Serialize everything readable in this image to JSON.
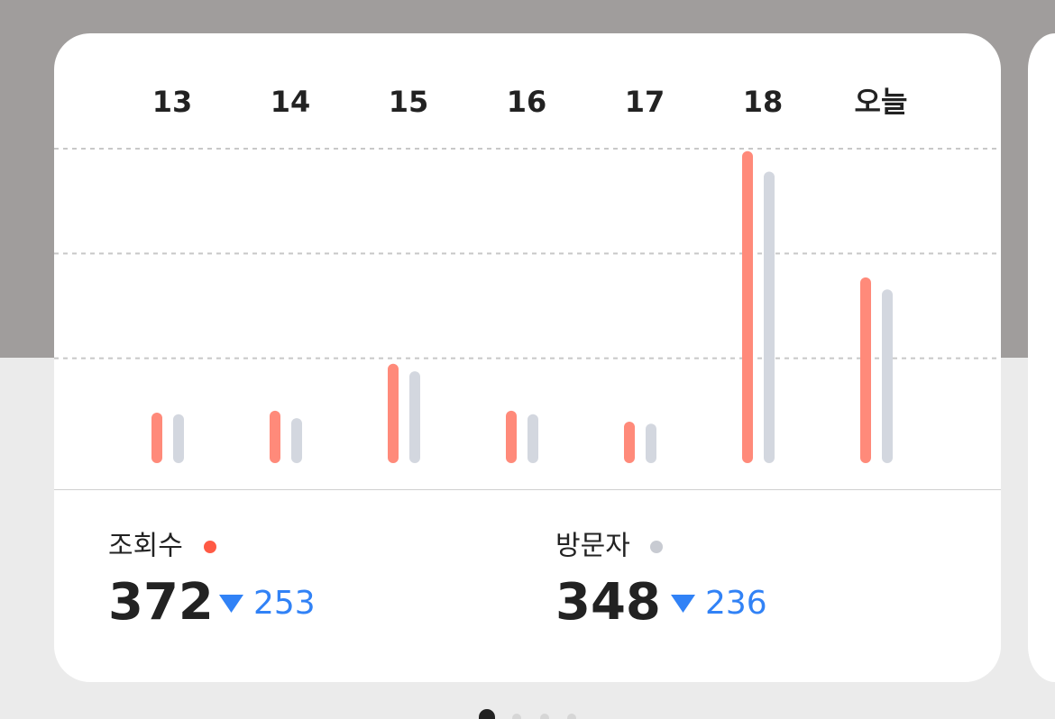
{
  "chart_data": {
    "type": "bar",
    "categories": [
      "13",
      "14",
      "15",
      "16",
      "17",
      "18",
      "오늘"
    ],
    "series": [
      {
        "name": "조회수",
        "color": "#ff8a7a",
        "values": [
          101,
          105,
          199,
          105,
          83,
          625,
          372
        ]
      },
      {
        "name": "방문자",
        "color": "#d3d7df",
        "values": [
          98,
          90,
          184,
          98,
          79,
          584,
          348
        ]
      }
    ],
    "ylim": [
      0,
      630
    ],
    "yticks": [
      210,
      420,
      630
    ],
    "grid": true
  },
  "summary": [
    {
      "label": "조회수",
      "value": "372",
      "change": "253"
    },
    {
      "label": "방문자",
      "value": "348",
      "change": "236"
    }
  ]
}
